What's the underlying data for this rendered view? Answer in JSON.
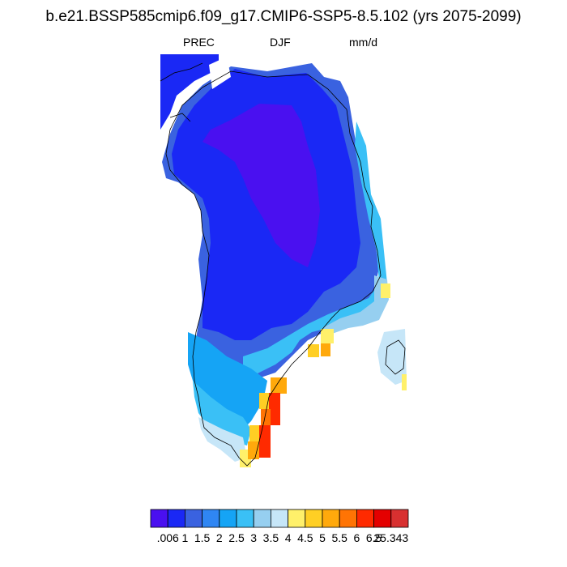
{
  "title": "b.e21.BSSP585cmip6.f09_g17.CMIP6-SSP5-8.5.102 (yrs 2075-2099)",
  "subtitle": {
    "variable": "PREC",
    "season": "DJF",
    "units": "mm/d"
  },
  "colorbar": {
    "colors": [
      "#4a10f0",
      "#1a28f5",
      "#3a62e0",
      "#2f86f3",
      "#15a4f5",
      "#3ac0f6",
      "#96cff0",
      "#c6e6f8",
      "#fff06a",
      "#ffcf24",
      "#ffa90c",
      "#ff7404",
      "#ff2a00",
      "#e40000",
      "#d83030"
    ],
    "labels": [
      ".006",
      "1",
      "1.5",
      "2",
      "2.5",
      "3",
      "3.5",
      "4",
      "4.5",
      "5",
      "5.5",
      "6",
      "6.5",
      "25.343"
    ]
  }
}
